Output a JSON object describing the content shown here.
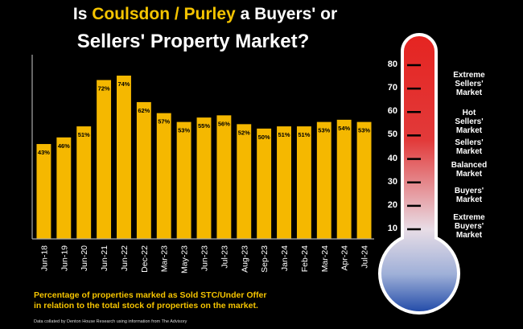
{
  "title": {
    "prefix": "Is ",
    "highlight": "Coulsdon / Purley",
    "suffix": " a Buyers' or",
    "line2": "Sellers' Property Market?"
  },
  "footnote": {
    "line1": "Percentage of properties marked as Sold STC/Under Offer",
    "line2": "in relation to the total stock of properties on the market.",
    "source": "Data collated by Denton House Research using information from The Advisory"
  },
  "chart_data": {
    "type": "bar",
    "categories": [
      "Jun-18",
      "Jun-19",
      "Jun-20",
      "Jun-21",
      "Jun-22",
      "Dec-22",
      "Mar-23",
      "May-23",
      "Jun-23",
      "Jul-23",
      "Aug-23",
      "Sep-23",
      "Jan-24",
      "Feb-24",
      "Mar-24",
      "Apr-24",
      "Jul-24"
    ],
    "values": [
      43,
      46,
      51,
      72,
      74,
      62,
      57,
      53,
      55,
      56,
      52,
      50,
      51,
      51,
      53,
      54,
      53
    ],
    "data_labels": [
      "43%",
      "46%",
      "51%",
      "72%",
      "74%",
      "62%",
      "57%",
      "53%",
      "55%",
      "56%",
      "52%",
      "50%",
      "51%",
      "51%",
      "53%",
      "54%",
      "53%"
    ],
    "ylim": [
      0,
      80
    ],
    "bar_color": "#f5b800",
    "axis_color": "#aaaaaa",
    "grid": false,
    "legend": "none"
  },
  "thermometer": {
    "ticks": [
      "80",
      "70",
      "60",
      "50",
      "40",
      "30",
      "20",
      "10"
    ],
    "tick_values": [
      80,
      70,
      60,
      50,
      40,
      30,
      20,
      10
    ],
    "labels": [
      {
        "text": "Extreme Sellers' Market",
        "lines": [
          "Extreme",
          "Sellers'",
          "Market"
        ],
        "value": 74
      },
      {
        "text": "Hot Sellers' Market",
        "lines": [
          "Hot",
          "Sellers'",
          "Market"
        ],
        "value": 60
      },
      {
        "text": "Sellers' Market",
        "lines": [
          "Sellers'",
          "Market"
        ],
        "value": 50
      },
      {
        "text": "Balanced Market",
        "lines": [
          "Balanced",
          "Market"
        ],
        "value": 40
      },
      {
        "text": "Buyers' Market",
        "lines": [
          "Buyers'",
          "Market"
        ],
        "value": 28
      },
      {
        "text": "Extreme Buyers' Market",
        "lines": [
          "Extreme",
          "Buyers'",
          "Market"
        ],
        "value": 16
      }
    ],
    "colors": {
      "top": "#e52421",
      "middle": "#e8dde6",
      "bottom": "#1f49a8",
      "outline": "#ffffff"
    }
  }
}
